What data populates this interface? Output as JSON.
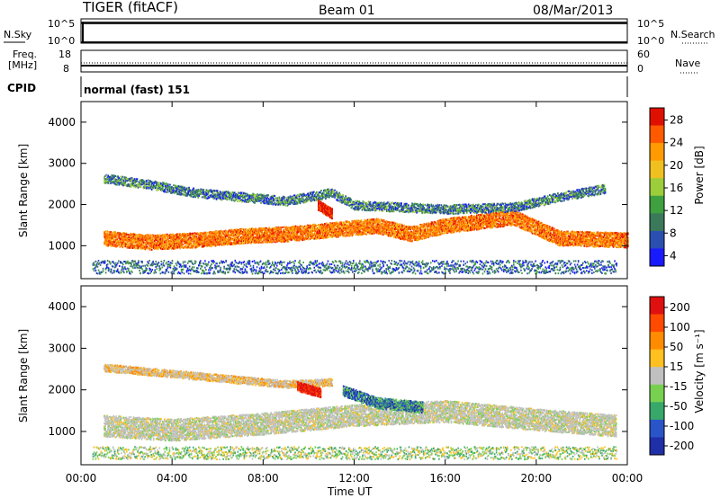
{
  "header": {
    "radar": "TIGER (fitACF)",
    "beam": "Beam 01",
    "date": "08/Mar/2013"
  },
  "noise_panel": {
    "left_label": "N.Sky",
    "right_label": "N.Search",
    "left_ticks": [
      "10^5",
      "10^0"
    ],
    "right_ticks": [
      "10^5",
      "10^0"
    ]
  },
  "freq_panel": {
    "left_label_lines": [
      "Freq.",
      "[MHz]"
    ],
    "right_label": "Nave",
    "left_ticks": [
      "18",
      "8"
    ],
    "right_ticks": [
      "60",
      "0"
    ]
  },
  "cpid_panel": {
    "label": "CPID",
    "value": "normal (fast) 151"
  },
  "power_panel": {
    "ylabel": "Slant Range [km]",
    "yticks": [
      "4000",
      "3000",
      "2000",
      "1000"
    ],
    "colorbar_label": "Power [dB]",
    "colorbar_ticks": [
      "28",
      "24",
      "20",
      "16",
      "12",
      "8",
      "4"
    ]
  },
  "velocity_panel": {
    "ylabel": "Slant Range [km]",
    "yticks": [
      "4000",
      "3000",
      "2000",
      "1000"
    ],
    "colorbar_label": "Velocity [m s⁻¹]",
    "colorbar_ticks": [
      "200",
      "100",
      "50",
      "15",
      "-15",
      "-50",
      "-100",
      "-200"
    ]
  },
  "xaxis": {
    "label": "Time UT",
    "ticks": [
      "00:00",
      "04:00",
      "08:00",
      "12:00",
      "16:00",
      "20:00",
      "00:00"
    ]
  },
  "colors": {
    "power_scale": [
      "#1a1aff",
      "#2b4fb0",
      "#3a7a5a",
      "#3fa040",
      "#9ccd3a",
      "#f0c020",
      "#ff9a00",
      "#ff5a00",
      "#e01000"
    ],
    "velocity_scale": [
      "#1e2fa8",
      "#2a55c8",
      "#38a86a",
      "#78d050",
      "#c0c0c0",
      "#ffc020",
      "#ff8c00",
      "#ff4a00",
      "#e01010"
    ]
  },
  "chart_data": [
    {
      "type": "heatmap",
      "panel": "power",
      "x_range_hours": [
        0,
        24
      ],
      "y_range_km": [
        200,
        4500
      ],
      "colorbar_range_db": [
        0,
        31
      ],
      "bands": [
        {
          "label": "main_F_region",
          "color_level": "red/orange",
          "points": [
            [
              1.0,
              1200
            ],
            [
              3.0,
              1100
            ],
            [
              5.0,
              1150
            ],
            [
              7.0,
              1250
            ],
            [
              9.0,
              1300
            ],
            [
              11.0,
              1400
            ],
            [
              13.0,
              1500
            ],
            [
              14.5,
              1300
            ],
            [
              16.0,
              1500
            ],
            [
              19.0,
              1700
            ],
            [
              21.0,
              1200
            ],
            [
              24.0,
              1150
            ]
          ]
        },
        {
          "label": "upper_band",
          "color_level": "blue/green",
          "points": [
            [
              1.0,
              2650
            ],
            [
              3.0,
              2500
            ],
            [
              5.0,
              2300
            ],
            [
              7.0,
              2200
            ],
            [
              9.0,
              2100
            ],
            [
              11.0,
              2300
            ],
            [
              12.0,
              2000
            ],
            [
              16.0,
              1900
            ],
            [
              19.0,
              1950
            ],
            [
              21.0,
              2200
            ],
            [
              23.0,
              2400
            ]
          ]
        },
        {
          "label": "burst",
          "color_level": "red",
          "points": [
            [
              10.4,
              2000
            ],
            [
              11.0,
              1800
            ]
          ]
        }
      ]
    },
    {
      "type": "heatmap",
      "panel": "velocity",
      "x_range_hours": [
        0,
        24
      ],
      "y_range_km": [
        200,
        4500
      ],
      "colorbar_range_ms": [
        -250,
        250
      ],
      "bands": [
        {
          "label": "ground_scatter",
          "color_level": "grey",
          "points": [
            [
              1.0,
              1150
            ],
            [
              4.0,
              1050
            ],
            [
              8.0,
              1200
            ],
            [
              12.0,
              1400
            ],
            [
              16.0,
              1500
            ],
            [
              20.0,
              1300
            ],
            [
              23.5,
              1150
            ]
          ]
        },
        {
          "label": "upper_grey",
          "color_level": "grey",
          "points": [
            [
              1.0,
              2550
            ],
            [
              6.0,
              2300
            ],
            [
              9.0,
              2150
            ],
            [
              11.0,
              2200
            ]
          ]
        },
        {
          "label": "positive",
          "color_level": "blue",
          "points": [
            [
              11.5,
              2000
            ],
            [
              13.0,
              1700
            ],
            [
              15.0,
              1600
            ]
          ]
        },
        {
          "label": "negative",
          "color_level": "red",
          "points": [
            [
              9.5,
              2100
            ],
            [
              10.5,
              1950
            ]
          ]
        }
      ]
    }
  ]
}
